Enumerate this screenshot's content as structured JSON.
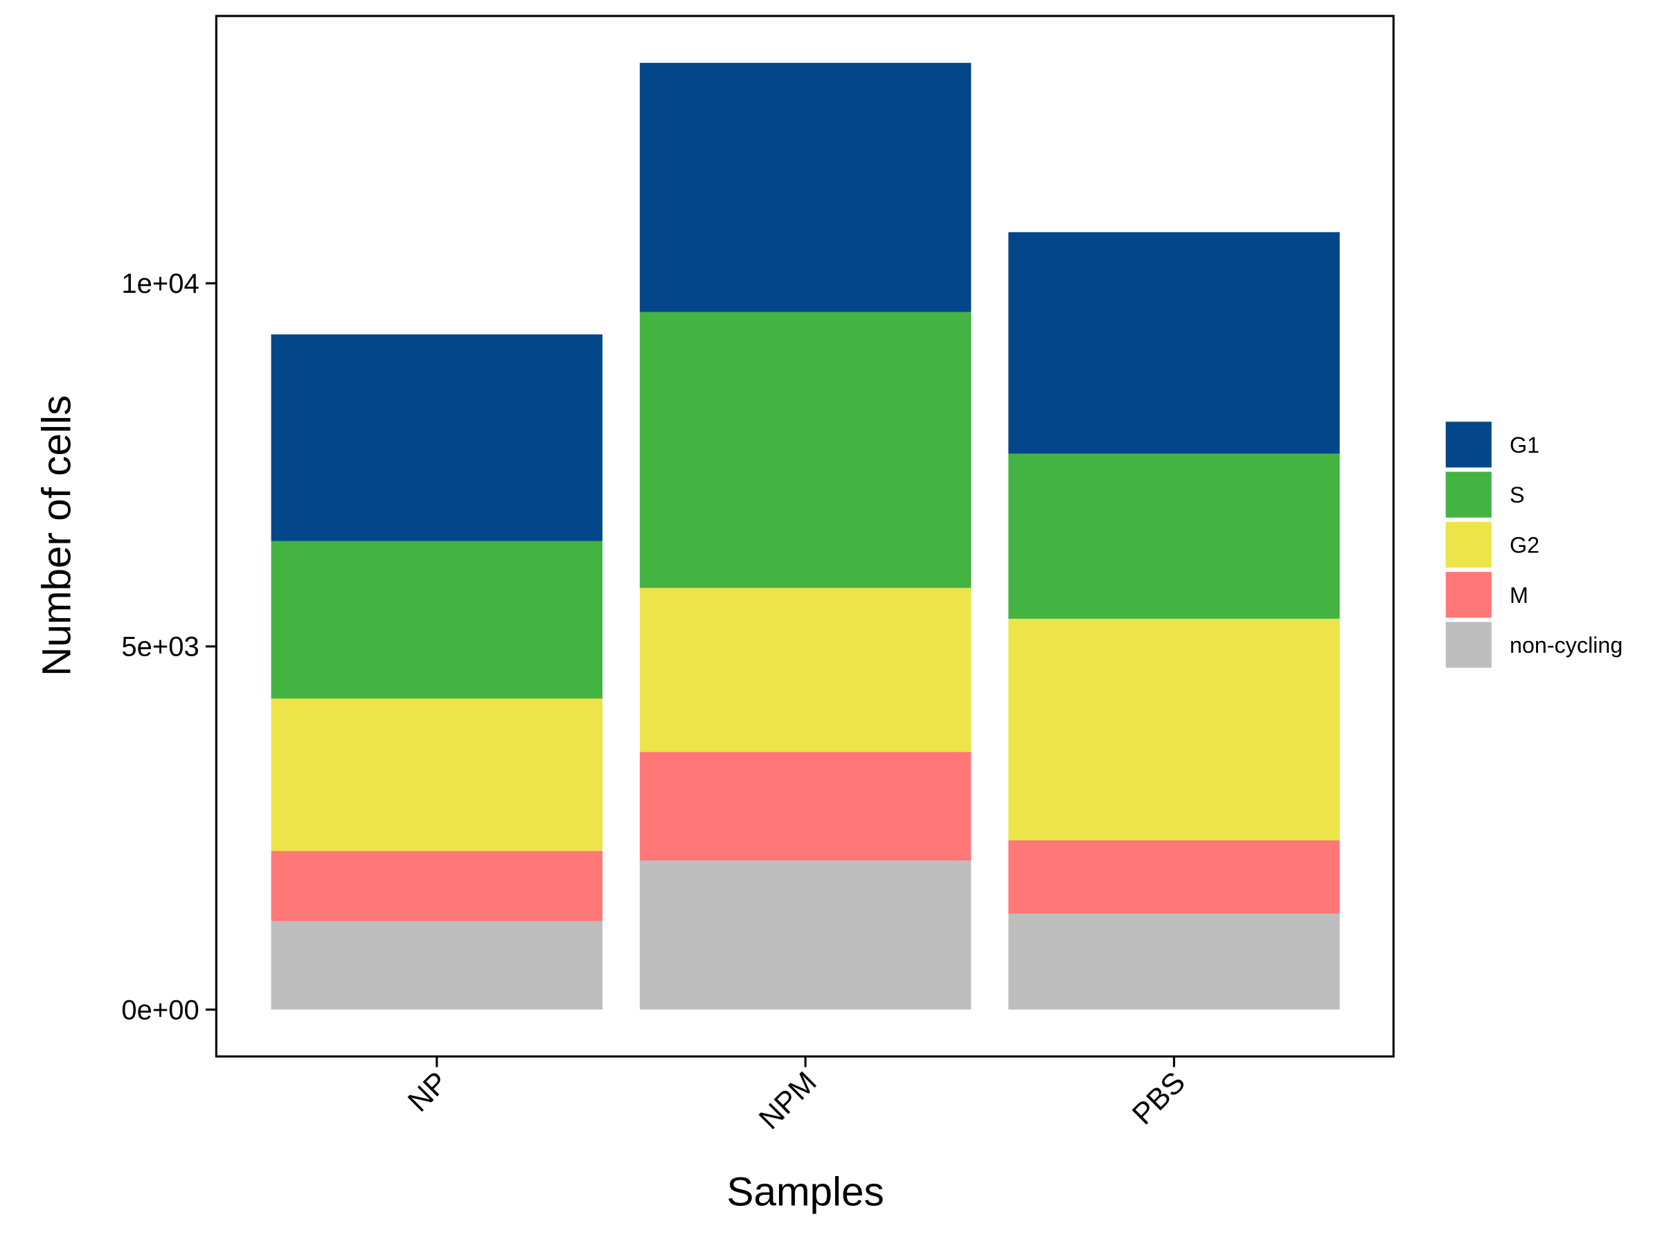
{
  "chart_data": {
    "type": "bar",
    "stacked": true,
    "title": "",
    "xlabel": "Samples",
    "ylabel": "Number of cells",
    "categories": [
      "NP",
      "NPM",
      "PBS"
    ],
    "ylim": [
      -650,
      13700
    ],
    "yticks": [
      0,
      5000,
      10000
    ],
    "ytick_labels": [
      "0e+00",
      "5e+03",
      "1e+04"
    ],
    "series": [
      {
        "name": "non-cycling",
        "color": "#BEBEBE",
        "values": [
          1217,
          2053,
          1320
        ]
      },
      {
        "name": "M",
        "color": "#FF7777",
        "values": [
          968,
          1495,
          1011
        ]
      },
      {
        "name": "G2",
        "color": "#ECE448",
        "values": [
          2097,
          2258,
          3050
        ]
      },
      {
        "name": "S",
        "color": "#43B441",
        "values": [
          2170,
          3798,
          2273
        ]
      },
      {
        "name": "G1",
        "color": "#03478A",
        "values": [
          2844,
          3431,
          3050
        ]
      }
    ],
    "legend_order": [
      "G1",
      "S",
      "G2",
      "M",
      "non-cycling"
    ],
    "legend_position": "right",
    "grid": false
  }
}
